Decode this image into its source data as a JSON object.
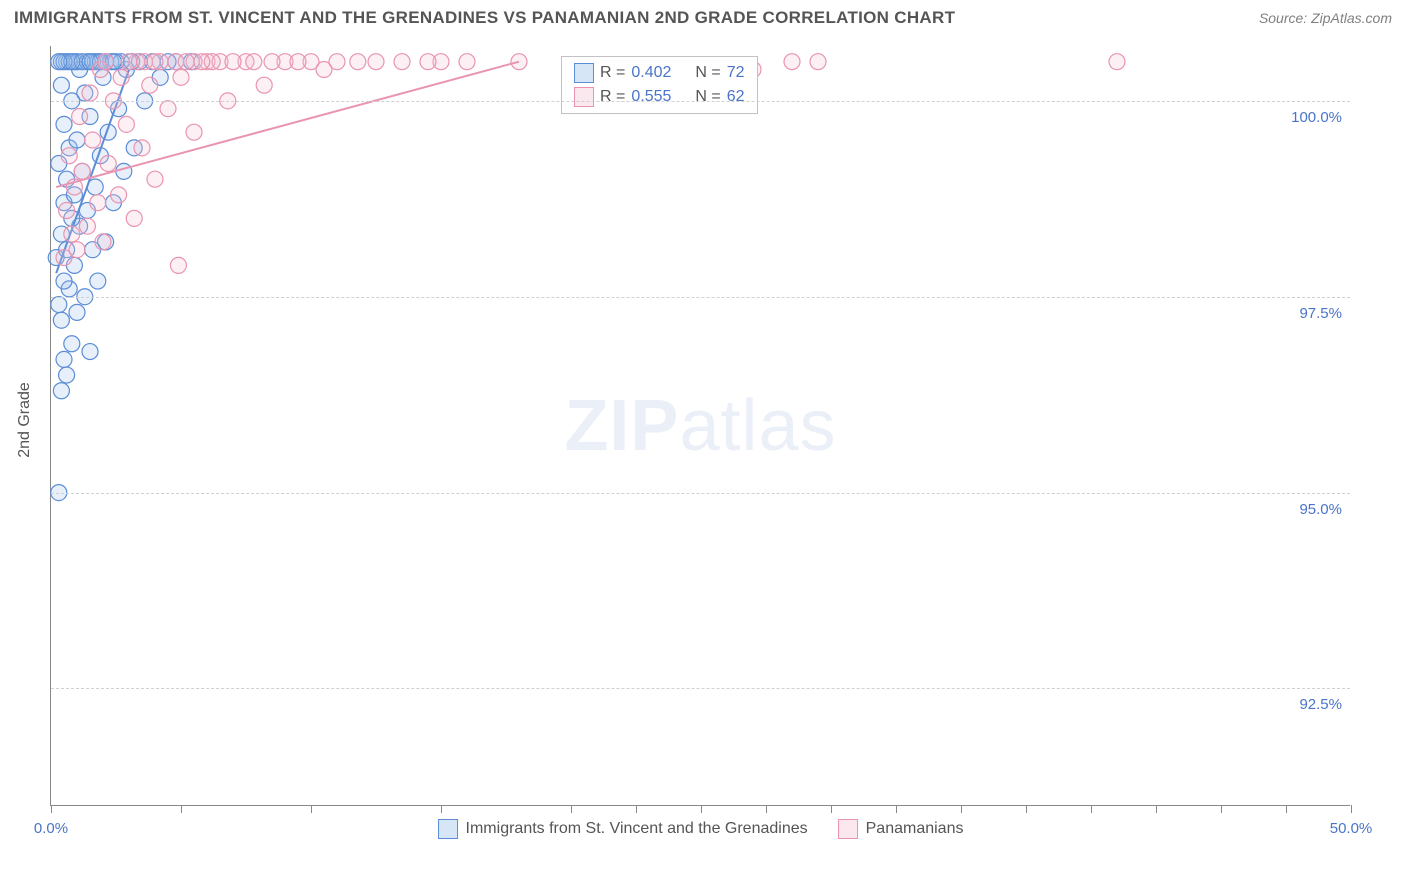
{
  "title": "IMMIGRANTS FROM ST. VINCENT AND THE GRENADINES VS PANAMANIAN 2ND GRADE CORRELATION CHART",
  "source_label": "Source: ZipAtlas.com",
  "ylabel": "2nd Grade",
  "watermark_bold": "ZIP",
  "watermark_rest": "atlas",
  "chart": {
    "type": "scatter",
    "xlim": [
      0,
      50
    ],
    "ylim": [
      91,
      100.7
    ],
    "x_ticks": [
      0,
      5,
      10,
      15,
      20,
      22.5,
      25,
      27.5,
      30,
      32.5,
      35,
      37.5,
      40,
      42.5,
      45,
      47.5,
      50
    ],
    "x_tick_labels": {
      "0": "0.0%",
      "50": "50.0%"
    },
    "y_gridlines": [
      92.5,
      95.0,
      97.5,
      100.0
    ],
    "y_tick_labels": [
      "92.5%",
      "95.0%",
      "97.5%",
      "100.0%"
    ],
    "background_color": "#ffffff",
    "grid_color": "#d0d0d0",
    "marker_radius": 8,
    "marker_fill_opacity": 0.25,
    "marker_stroke_width": 1.2,
    "line_width": 2
  },
  "series": [
    {
      "name": "Immigrants from St. Vincent and the Grenadines",
      "color_stroke": "#5b8dd6",
      "color_fill": "#9cc0ea",
      "R": "0.402",
      "N": "72",
      "trend": {
        "x1": 0.2,
        "y1": 97.8,
        "x2": 3.0,
        "y2": 100.4
      },
      "points": [
        [
          0.3,
          95.0
        ],
        [
          0.4,
          96.3
        ],
        [
          0.6,
          96.5
        ],
        [
          0.5,
          96.7
        ],
        [
          1.5,
          96.8
        ],
        [
          0.8,
          96.9
        ],
        [
          0.4,
          97.2
        ],
        [
          1.0,
          97.3
        ],
        [
          0.3,
          97.4
        ],
        [
          1.3,
          97.5
        ],
        [
          0.7,
          97.6
        ],
        [
          0.5,
          97.7
        ],
        [
          1.8,
          97.7
        ],
        [
          0.9,
          97.9
        ],
        [
          0.2,
          98.0
        ],
        [
          0.6,
          98.1
        ],
        [
          1.6,
          98.1
        ],
        [
          2.1,
          98.2
        ],
        [
          0.4,
          98.3
        ],
        [
          1.1,
          98.4
        ],
        [
          0.8,
          98.5
        ],
        [
          1.4,
          98.6
        ],
        [
          0.5,
          98.7
        ],
        [
          2.4,
          98.7
        ],
        [
          0.9,
          98.8
        ],
        [
          1.7,
          98.9
        ],
        [
          0.6,
          99.0
        ],
        [
          1.2,
          99.1
        ],
        [
          2.8,
          99.1
        ],
        [
          0.3,
          99.2
        ],
        [
          1.9,
          99.3
        ],
        [
          0.7,
          99.4
        ],
        [
          3.2,
          99.4
        ],
        [
          1.0,
          99.5
        ],
        [
          2.2,
          99.6
        ],
        [
          0.5,
          99.7
        ],
        [
          1.5,
          99.8
        ],
        [
          2.6,
          99.9
        ],
        [
          0.8,
          100.0
        ],
        [
          3.6,
          100.0
        ],
        [
          1.3,
          100.1
        ],
        [
          0.4,
          100.2
        ],
        [
          2.0,
          100.3
        ],
        [
          4.2,
          100.3
        ],
        [
          1.1,
          100.4
        ],
        [
          2.9,
          100.4
        ],
        [
          0.6,
          100.5
        ],
        [
          1.7,
          100.5
        ],
        [
          3.4,
          100.5
        ],
        [
          0.9,
          100.5
        ],
        [
          2.3,
          100.5
        ],
        [
          4.8,
          100.5
        ],
        [
          1.4,
          100.5
        ],
        [
          0.4,
          100.5
        ],
        [
          2.7,
          100.5
        ],
        [
          1.0,
          100.5
        ],
        [
          3.9,
          100.5
        ],
        [
          0.7,
          100.5
        ],
        [
          1.8,
          100.5
        ],
        [
          5.4,
          100.5
        ],
        [
          2.5,
          100.5
        ],
        [
          1.2,
          100.5
        ],
        [
          0.5,
          100.5
        ],
        [
          3.1,
          100.5
        ],
        [
          1.6,
          100.5
        ],
        [
          0.8,
          100.5
        ],
        [
          2.1,
          100.5
        ],
        [
          4.5,
          100.5
        ],
        [
          1.9,
          100.5
        ],
        [
          0.3,
          100.5
        ],
        [
          2.4,
          100.5
        ],
        [
          1.5,
          100.5
        ]
      ]
    },
    {
      "name": "Panamanians",
      "color_stroke": "#e994b0",
      "color_fill": "#f5c4d4",
      "R": "0.555",
      "N": "62",
      "trend": {
        "x1": 0.2,
        "y1": 98.9,
        "x2": 18.0,
        "y2": 100.5
      },
      "points": [
        [
          4.9,
          97.9
        ],
        [
          0.5,
          98.0
        ],
        [
          1.0,
          98.1
        ],
        [
          2.0,
          98.2
        ],
        [
          0.8,
          98.3
        ],
        [
          1.4,
          98.4
        ],
        [
          3.2,
          98.5
        ],
        [
          0.6,
          98.6
        ],
        [
          1.8,
          98.7
        ],
        [
          2.6,
          98.8
        ],
        [
          0.9,
          98.9
        ],
        [
          4.0,
          99.0
        ],
        [
          1.2,
          99.1
        ],
        [
          2.2,
          99.2
        ],
        [
          0.7,
          99.3
        ],
        [
          3.5,
          99.4
        ],
        [
          1.6,
          99.5
        ],
        [
          5.5,
          99.6
        ],
        [
          2.9,
          99.7
        ],
        [
          1.1,
          99.8
        ],
        [
          4.5,
          99.9
        ],
        [
          2.4,
          100.0
        ],
        [
          6.8,
          100.0
        ],
        [
          1.5,
          100.1
        ],
        [
          3.8,
          100.2
        ],
        [
          8.2,
          100.2
        ],
        [
          2.7,
          100.3
        ],
        [
          5.0,
          100.3
        ],
        [
          1.9,
          100.4
        ],
        [
          10.5,
          100.4
        ],
        [
          3.3,
          100.5
        ],
        [
          6.0,
          100.5
        ],
        [
          2.1,
          100.5
        ],
        [
          12.5,
          100.5
        ],
        [
          4.2,
          100.5
        ],
        [
          7.5,
          100.5
        ],
        [
          3.0,
          100.5
        ],
        [
          15.0,
          100.5
        ],
        [
          5.5,
          100.5
        ],
        [
          9.0,
          100.5
        ],
        [
          3.6,
          100.5
        ],
        [
          18.0,
          100.5
        ],
        [
          6.5,
          100.5
        ],
        [
          11.0,
          100.5
        ],
        [
          4.8,
          100.5
        ],
        [
          7.0,
          100.5
        ],
        [
          13.5,
          100.5
        ],
        [
          5.2,
          100.5
        ],
        [
          8.5,
          100.5
        ],
        [
          16.0,
          100.5
        ],
        [
          6.2,
          100.5
        ],
        [
          10.0,
          100.5
        ],
        [
          4.0,
          100.5
        ],
        [
          7.8,
          100.5
        ],
        [
          11.8,
          100.5
        ],
        [
          5.8,
          100.5
        ],
        [
          9.5,
          100.5
        ],
        [
          14.5,
          100.5
        ],
        [
          27.0,
          100.4
        ],
        [
          28.5,
          100.5
        ],
        [
          29.5,
          100.5
        ],
        [
          41.0,
          100.5
        ]
      ]
    }
  ],
  "legend_top": {
    "rows": [
      {
        "swatch": 0,
        "R_label": "R =",
        "R_val": "0.402",
        "N_label": "N =",
        "N_val": "72"
      },
      {
        "swatch": 1,
        "R_label": "R =",
        "R_val": "0.555",
        "N_label": "N =",
        "N_val": "62"
      }
    ]
  },
  "legend_bottom": [
    {
      "swatch": 0,
      "label": "Immigrants from St. Vincent and the Grenadines"
    },
    {
      "swatch": 1,
      "label": "Panamanians"
    }
  ]
}
